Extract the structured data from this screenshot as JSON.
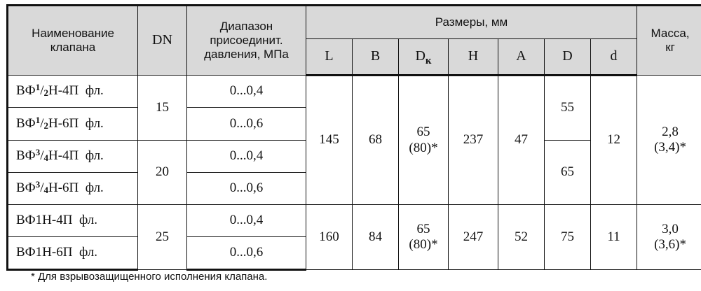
{
  "header": {
    "name": [
      "Наименование",
      "клапана"
    ],
    "dn": "DN",
    "range": [
      "Диапазон",
      "присоединит.",
      "давления, МПа"
    ],
    "sizes": "Размеры, мм",
    "mass": [
      "Масса,",
      "кг"
    ],
    "cols": {
      "L": "L",
      "B": "B",
      "Dk_main": "D",
      "Dk_sub": "к",
      "H": "H",
      "A": "A",
      "D": "D",
      "d": "d"
    }
  },
  "rows": [
    {
      "name_pre": "ВФ",
      "name_sup": "1",
      "name_slash": "/",
      "name_sub": "2",
      "name_post": "Н-4П  фл.",
      "range": "0...0,4"
    },
    {
      "name_pre": "ВФ",
      "name_sup": "1",
      "name_slash": "/",
      "name_sub": "2",
      "name_post": "Н-6П  фл.",
      "range": "0...0,6"
    },
    {
      "name_pre": "ВФ",
      "name_sup": "3",
      "name_slash": "/",
      "name_sub": "4",
      "name_post": "Н-4П  фл.",
      "range": "0...0,4"
    },
    {
      "name_pre": "ВФ",
      "name_sup": "3",
      "name_slash": "/",
      "name_sub": "4",
      "name_post": "Н-6П  фл.",
      "range": "0...0,6"
    },
    {
      "name": "ВФ1Н-4П  фл.",
      "range": "0...0,4"
    },
    {
      "name": "ВФ1Н-6П  фл.",
      "range": "0...0,6"
    }
  ],
  "dn_groups": [
    "15",
    "20",
    "25"
  ],
  "group1": {
    "L": "145",
    "B": "68",
    "Dk": [
      "65",
      "(80)*"
    ],
    "H": "237",
    "A": "47",
    "D_top": "55",
    "D_bottom": "65",
    "d": "12",
    "mass": [
      "2,8",
      "(3,4)*"
    ]
  },
  "group2": {
    "L": "160",
    "B": "84",
    "Dk": [
      "65",
      "(80)*"
    ],
    "H": "247",
    "A": "52",
    "D": "75",
    "d": "11",
    "mass": [
      "3,0",
      "(3,6)*"
    ]
  },
  "footnote": "* Для взрывозащищенного исполнения клапана."
}
